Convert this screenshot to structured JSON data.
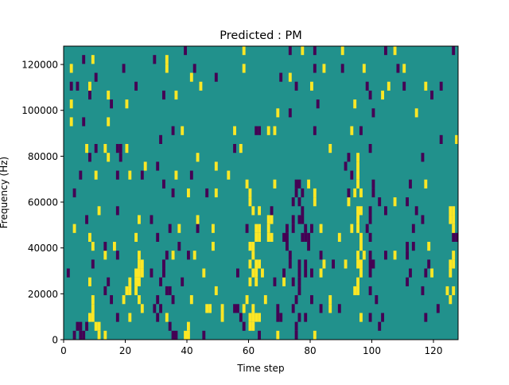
{
  "chart_data": {
    "type": "heatmap",
    "title": "Predicted : PM",
    "xlabel": "Time step",
    "ylabel": "Frequency (Hz)",
    "xlim": [
      0,
      128
    ],
    "ylim": [
      0,
      128000
    ],
    "x_ticks": [
      0,
      20,
      40,
      60,
      80,
      100,
      120
    ],
    "y_ticks": [
      0,
      20000,
      40000,
      60000,
      80000,
      100000,
      120000
    ],
    "n_time_steps": 128,
    "n_freq_bins": 33,
    "grid": false,
    "colors": {
      "background_value_0": "#21918c",
      "value_pos": "#fde725",
      "value_neg": "#440154"
    },
    "background_value": 0,
    "cells_note": "rows indexed from bottom frequency bin; each entry [time_step, value]",
    "rows": [
      [
        [
          3,
          -1
        ],
        [
          5,
          -1
        ],
        [
          6,
          -1
        ],
        [
          11,
          1
        ],
        [
          13,
          1
        ],
        [
          35,
          -1
        ],
        [
          36,
          -1
        ],
        [
          39,
          1
        ],
        [
          40,
          1
        ],
        [
          45,
          -1
        ],
        [
          63,
          -1
        ],
        [
          69,
          1
        ],
        [
          75,
          -1
        ],
        [
          81,
          1
        ]
      ],
      [
        [
          4,
          -1
        ],
        [
          5,
          -1
        ],
        [
          7,
          -1
        ],
        [
          10,
          1
        ],
        [
          11,
          1
        ],
        [
          34,
          -1
        ],
        [
          40,
          1
        ],
        [
          58,
          -1
        ],
        [
          60,
          1
        ],
        [
          61,
          1
        ],
        [
          75,
          -1
        ],
        [
          102,
          -1
        ]
      ],
      [
        [
          8,
          1
        ],
        [
          9,
          1
        ],
        [
          17,
          -1
        ],
        [
          21,
          1
        ],
        [
          30,
          -1
        ],
        [
          33,
          1
        ],
        [
          51,
          1
        ],
        [
          57,
          -1
        ],
        [
          60,
          1
        ],
        [
          61,
          1
        ],
        [
          62,
          1
        ],
        [
          63,
          1
        ],
        [
          69,
          -1
        ],
        [
          70,
          -1
        ],
        [
          76,
          -1
        ],
        [
          78,
          -1
        ],
        [
          96,
          1
        ],
        [
          99,
          -1
        ],
        [
          103,
          -1
        ],
        [
          117,
          -1
        ]
      ],
      [
        [
          9,
          1
        ],
        [
          25,
          1
        ],
        [
          29,
          -1
        ],
        [
          31,
          -1
        ],
        [
          46,
          1
        ],
        [
          47,
          1
        ],
        [
          51,
          1
        ],
        [
          55,
          -1
        ],
        [
          56,
          -1
        ],
        [
          58,
          1
        ],
        [
          61,
          1
        ],
        [
          69,
          -1
        ],
        [
          74,
          -1
        ],
        [
          83,
          -1
        ],
        [
          86,
          1
        ],
        [
          89,
          -1
        ],
        [
          121,
          -1
        ]
      ],
      [
        [
          9,
          1
        ],
        [
          15,
          -1
        ],
        [
          19,
          1
        ],
        [
          24,
          1
        ],
        [
          30,
          -1
        ],
        [
          35,
          -1
        ],
        [
          41,
          1
        ],
        [
          59,
          1
        ],
        [
          65,
          1
        ],
        [
          75,
          -1
        ],
        [
          80,
          -1
        ],
        [
          86,
          1
        ],
        [
          101,
          -1
        ],
        [
          125,
          1
        ]
      ],
      [
        [
          13,
          -1
        ],
        [
          20,
          1
        ],
        [
          21,
          1
        ],
        [
          23,
          1
        ],
        [
          33,
          -1
        ],
        [
          34,
          -1
        ],
        [
          49,
          1
        ],
        [
          76,
          -1
        ],
        [
          94,
          1
        ],
        [
          95,
          1
        ],
        [
          99,
          -1
        ],
        [
          116,
          -1
        ],
        [
          124,
          1
        ],
        [
          126,
          1
        ]
      ],
      [
        [
          8,
          1
        ],
        [
          14,
          -1
        ],
        [
          21,
          1
        ],
        [
          23,
          1
        ],
        [
          24,
          1
        ],
        [
          31,
          -1
        ],
        [
          38,
          -1
        ],
        [
          60,
          1
        ],
        [
          62,
          1
        ],
        [
          68,
          -1
        ],
        [
          71,
          1
        ],
        [
          74,
          -1
        ],
        [
          76,
          -1
        ],
        [
          95,
          1
        ],
        [
          111,
          -1
        ]
      ],
      [
        [
          1,
          -1
        ],
        [
          23,
          1
        ],
        [
          24,
          1
        ],
        [
          25,
          1
        ],
        [
          28,
          -1
        ],
        [
          32,
          -1
        ],
        [
          45,
          1
        ],
        [
          56,
          -1
        ],
        [
          61,
          1
        ],
        [
          62,
          1
        ],
        [
          64,
          1
        ],
        [
          71,
          -1
        ],
        [
          76,
          -1
        ],
        [
          78,
          -1
        ],
        [
          80,
          -1
        ],
        [
          83,
          1
        ],
        [
          96,
          1
        ],
        [
          99,
          -1
        ],
        [
          112,
          -1
        ],
        [
          117,
          -1
        ],
        [
          119,
          1
        ],
        [
          125,
          1
        ]
      ],
      [
        [
          9,
          -1
        ],
        [
          24,
          1
        ],
        [
          25,
          1
        ],
        [
          32,
          -1
        ],
        [
          60,
          1
        ],
        [
          62,
          1
        ],
        [
          63,
          1
        ],
        [
          73,
          -1
        ],
        [
          76,
          -1
        ],
        [
          78,
          -1
        ],
        [
          84,
          1
        ],
        [
          87,
          -1
        ],
        [
          91,
          1
        ],
        [
          95,
          1
        ],
        [
          96,
          1
        ],
        [
          99,
          -1
        ],
        [
          100,
          -1
        ],
        [
          118,
          -1
        ],
        [
          125,
          1
        ],
        [
          126,
          1
        ]
      ],
      [
        [
          13,
          1
        ],
        [
          17,
          -1
        ],
        [
          24,
          1
        ],
        [
          33,
          -1
        ],
        [
          35,
          1
        ],
        [
          40,
          -1
        ],
        [
          42,
          1
        ],
        [
          61,
          1
        ],
        [
          73,
          -1
        ],
        [
          83,
          -1
        ],
        [
          95,
          1
        ],
        [
          97,
          1
        ],
        [
          99,
          -1
        ],
        [
          104,
          -1
        ],
        [
          107,
          1
        ],
        [
          111,
          -1
        ],
        [
          126,
          1
        ]
      ],
      [
        [
          9,
          1
        ],
        [
          13,
          -1
        ],
        [
          16,
          1
        ],
        [
          37,
          -1
        ],
        [
          48,
          1
        ],
        [
          60,
          1
        ],
        [
          61,
          1
        ],
        [
          72,
          -1
        ],
        [
          79,
          -1
        ],
        [
          96,
          1
        ],
        [
          111,
          -1
        ],
        [
          113,
          -1
        ],
        [
          118,
          1
        ]
      ],
      [
        [
          8,
          1
        ],
        [
          23,
          1
        ],
        [
          30,
          -1
        ],
        [
          62,
          1
        ],
        [
          63,
          1
        ],
        [
          66,
          1
        ],
        [
          67,
          1
        ],
        [
          71,
          -1
        ],
        [
          72,
          -1
        ],
        [
          77,
          -1
        ],
        [
          78,
          -1
        ],
        [
          79,
          -1
        ],
        [
          89,
          1
        ],
        [
          96,
          1
        ],
        [
          99,
          -1
        ],
        [
          126,
          -1
        ],
        [
          127,
          -1
        ]
      ],
      [
        [
          3,
          1
        ],
        [
          34,
          -1
        ],
        [
          37,
          1
        ],
        [
          43,
          -1
        ],
        [
          48,
          1
        ],
        [
          59,
          -1
        ],
        [
          62,
          1
        ],
        [
          63,
          1
        ],
        [
          66,
          1
        ],
        [
          72,
          -1
        ],
        [
          74,
          -1
        ],
        [
          78,
          -1
        ],
        [
          80,
          -1
        ],
        [
          83,
          1
        ],
        [
          93,
          1
        ],
        [
          95,
          1
        ],
        [
          98,
          -1
        ],
        [
          113,
          -1
        ],
        [
          126,
          1
        ]
      ],
      [
        [
          7,
          -1
        ],
        [
          24,
          1
        ],
        [
          28,
          -1
        ],
        [
          43,
          1
        ],
        [
          66,
          1
        ],
        [
          67,
          1
        ],
        [
          74,
          -1
        ],
        [
          76,
          -1
        ],
        [
          77,
          -1
        ],
        [
          95,
          1
        ],
        [
          99,
          -1
        ],
        [
          116,
          -1
        ],
        [
          125,
          1
        ],
        [
          126,
          1
        ]
      ],
      [
        [
          11,
          1
        ],
        [
          17,
          -1
        ],
        [
          61,
          1
        ],
        [
          63,
          1
        ],
        [
          67,
          -1
        ],
        [
          77,
          -1
        ],
        [
          95,
          1
        ],
        [
          96,
          1
        ],
        [
          99,
          -1
        ],
        [
          104,
          -1
        ],
        [
          114,
          -1
        ],
        [
          125,
          1
        ],
        [
          126,
          1
        ]
      ],
      [
        [
          60,
          1
        ],
        [
          74,
          -1
        ],
        [
          76,
          -1
        ],
        [
          81,
          1
        ],
        [
          92,
          1
        ],
        [
          102,
          -1
        ],
        [
          107,
          1
        ],
        [
          111,
          -1
        ]
      ],
      [
        [
          3,
          -1
        ],
        [
          35,
          -1
        ],
        [
          40,
          1
        ],
        [
          46,
          -1
        ],
        [
          49,
          1
        ],
        [
          60,
          1
        ],
        [
          75,
          -1
        ],
        [
          77,
          -1
        ],
        [
          81,
          1
        ],
        [
          92,
          -1
        ],
        [
          94,
          1
        ],
        [
          96,
          1
        ],
        [
          100,
          -1
        ]
      ],
      [
        [
          32,
          -1
        ],
        [
          59,
          1
        ],
        [
          68,
          1
        ],
        [
          75,
          -1
        ],
        [
          76,
          -1
        ],
        [
          79,
          1
        ],
        [
          95,
          1
        ],
        [
          100,
          -1
        ],
        [
          112,
          -1
        ],
        [
          117,
          1
        ]
      ],
      [
        [
          5,
          -1
        ],
        [
          10,
          1
        ],
        [
          17,
          -1
        ],
        [
          21,
          1
        ],
        [
          25,
          -1
        ],
        [
          36,
          1
        ],
        [
          41,
          -1
        ],
        [
          53,
          1
        ],
        [
          93,
          -1
        ],
        [
          95,
          1
        ]
      ],
      [
        [
          26,
          1
        ],
        [
          30,
          -1
        ],
        [
          49,
          1
        ],
        [
          91,
          -1
        ],
        [
          95,
          1
        ]
      ],
      [
        [
          8,
          -1
        ],
        [
          14,
          1
        ],
        [
          18,
          -1
        ],
        [
          43,
          1
        ],
        [
          92,
          -1
        ],
        [
          95,
          1
        ],
        [
          116,
          -1
        ]
      ],
      [
        [
          7,
          1
        ],
        [
          10,
          -1
        ],
        [
          13,
          1
        ],
        [
          17,
          -1
        ],
        [
          18,
          -1
        ],
        [
          20,
          1
        ],
        [
          55,
          -1
        ],
        [
          57,
          1
        ],
        [
          86,
          1
        ],
        [
          99,
          -1
        ]
      ],
      [
        [
          31,
          -1
        ],
        [
          122,
          -1
        ],
        [
          127,
          1
        ]
      ],
      [
        [
          35,
          -1
        ],
        [
          38,
          1
        ],
        [
          55,
          1
        ],
        [
          62,
          -1
        ],
        [
          63,
          -1
        ],
        [
          66,
          1
        ],
        [
          68,
          1
        ],
        [
          81,
          -1
        ],
        [
          93,
          1
        ],
        [
          96,
          -1
        ]
      ],
      [
        [
          2,
          1
        ],
        [
          6,
          -1
        ],
        [
          14,
          1
        ]
      ],
      [
        [
          69,
          1
        ],
        [
          73,
          -1
        ],
        [
          100,
          -1
        ],
        [
          114,
          1
        ]
      ],
      [
        [
          2,
          1
        ],
        [
          15,
          -1
        ],
        [
          20,
          1
        ],
        [
          82,
          -1
        ],
        [
          94,
          1
        ]
      ],
      [
        [
          8,
          -1
        ],
        [
          14,
          1
        ],
        [
          32,
          -1
        ],
        [
          36,
          1
        ],
        [
          99,
          -1
        ],
        [
          103,
          1
        ],
        [
          119,
          -1
        ]
      ],
      [
        [
          2,
          -1
        ],
        [
          4,
          -1
        ],
        [
          8,
          1
        ],
        [
          23,
          -1
        ],
        [
          44,
          1
        ],
        [
          75,
          -1
        ],
        [
          80,
          1
        ],
        [
          98,
          -1
        ],
        [
          105,
          1
        ],
        [
          110,
          -1
        ],
        [
          117,
          1
        ],
        [
          122,
          -1
        ]
      ],
      [
        [
          10,
          -1
        ],
        [
          41,
          1
        ],
        [
          49,
          -1
        ],
        [
          70,
          -1
        ],
        [
          73,
          1
        ]
      ],
      [
        [
          2,
          1
        ],
        [
          19,
          -1
        ],
        [
          33,
          1
        ],
        [
          42,
          -1
        ],
        [
          58,
          1
        ],
        [
          81,
          -1
        ],
        [
          84,
          1
        ],
        [
          90,
          -1
        ],
        [
          97,
          1
        ],
        [
          108,
          -1
        ],
        [
          110,
          1
        ]
      ],
      [
        [
          6,
          -1
        ],
        [
          9,
          1
        ],
        [
          29,
          -1
        ],
        [
          33,
          1
        ]
      ],
      [
        [
          39,
          -1
        ],
        [
          58,
          1
        ],
        [
          73,
          -1
        ],
        [
          77,
          1
        ],
        [
          81,
          -1
        ],
        [
          90,
          1
        ],
        [
          104,
          -1
        ],
        [
          107,
          1
        ],
        [
          126,
          -1
        ]
      ]
    ]
  }
}
